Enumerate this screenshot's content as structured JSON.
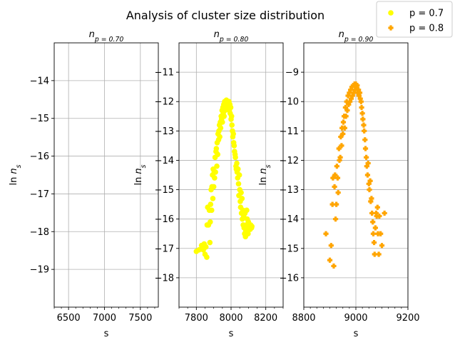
{
  "chart_data": {
    "suptitle": "Analysis of cluster size distribution",
    "legend": {
      "placement": "top-right",
      "entries": [
        {
          "label": "p = 0.7",
          "marker": "circle",
          "color": "#ffff00"
        },
        {
          "label": "p = 0.8",
          "marker": "plus",
          "color": "#ffa500"
        }
      ]
    },
    "panels": [
      {
        "type": "scatter",
        "title_base": "n",
        "title_sub": "p = 0.70",
        "xlabel": "s",
        "ylabel_base": "ln n",
        "ylabel_sub": "s",
        "xlim": [
          6300,
          7750
        ],
        "ylim": [
          -20,
          -13
        ],
        "xticks": [
          6500,
          7000,
          7500
        ],
        "xticklabels": [
          "6500",
          "7000",
          "7500"
        ],
        "yticks": [
          -19,
          -18,
          -17,
          -16,
          -15,
          -14
        ],
        "yticklabels": [
          "−19",
          "−18",
          "−17",
          "−16",
          "−15",
          "−14"
        ],
        "xminor": 100,
        "grid": true,
        "series": []
      },
      {
        "type": "scatter",
        "title_base": "n",
        "title_sub": "p = 0.80",
        "xlabel": "s",
        "ylabel_base": "ln n",
        "ylabel_sub": "s",
        "xlim": [
          7700,
          8300
        ],
        "ylim": [
          -19,
          -10
        ],
        "xticks": [
          7800,
          8000,
          8200
        ],
        "xticklabels": [
          "7800",
          "8000",
          "8200"
        ],
        "yticks": [
          -18,
          -17,
          -16,
          -15,
          -14,
          -13,
          -12,
          -11
        ],
        "yticklabels": [
          "−18",
          "−17",
          "−16",
          "−15",
          "−14",
          "−13",
          "−12",
          "−11"
        ],
        "xminor": 50,
        "grid": true,
        "series": [
          {
            "marker": "circle",
            "color": "#ffff00",
            "x": [
              7800,
              7815,
              7830,
              7840,
              7845,
              7850,
              7855,
              7860,
              7862,
              7865,
              7870,
              7875,
              7878,
              7880,
              7882,
              7885,
              7888,
              7890,
              7893,
              7895,
              7897,
              7900,
              7903,
              7905,
              7908,
              7910,
              7913,
              7915,
              7918,
              7920,
              7923,
              7925,
              7928,
              7930,
              7933,
              7935,
              7938,
              7940,
              7943,
              7945,
              7948,
              7950,
              7953,
              7955,
              7958,
              7960,
              7963,
              7965,
              7968,
              7970,
              7973,
              7975,
              7978,
              7980,
              7983,
              7985,
              7988,
              7990,
              7993,
              7995,
              7998,
              8000,
              8003,
              8005,
              8008,
              8010,
              8013,
              8015,
              8018,
              8020,
              8023,
              8025,
              8028,
              8030,
              8033,
              8035,
              8038,
              8040,
              8043,
              8045,
              8048,
              8050,
              8053,
              8055,
              8058,
              8060,
              8063,
              8065,
              8068,
              8070,
              8073,
              8075,
              8078,
              8080,
              8083,
              8085,
              8088,
              8090,
              8093,
              8095,
              8098,
              8100,
              8103,
              8105,
              8108,
              8110,
              8113,
              8115,
              8118,
              8120
            ],
            "y": [
              -17.1,
              -17.05,
              -16.9,
              -17.05,
              -16.85,
              -17.2,
              -16.95,
              -17.3,
              -16.2,
              -15.6,
              -16.2,
              -15.7,
              -16.8,
              -16.1,
              -15.5,
              -15.0,
              -15.7,
              -14.9,
              -14.5,
              -15.3,
              -14.3,
              -14.9,
              -14.4,
              -14.6,
              -13.9,
              -14.4,
              -13.7,
              -13.6,
              -14.2,
              -13.4,
              -13.8,
              -13.1,
              -13.3,
              -13.0,
              -12.8,
              -13.2,
              -12.7,
              -12.9,
              -12.5,
              -12.6,
              -12.3,
              -12.7,
              -12.2,
              -12.4,
              -12.1,
              -12.5,
              -12.0,
              -12.3,
              -12.05,
              -12.2,
              -11.95,
              -12.1,
              -12.05,
              -12.0,
              -12.2,
              -12.1,
              -12.0,
              -12.3,
              -12.1,
              -12.4,
              -12.2,
              -12.6,
              -12.5,
              -12.8,
              -13.0,
              -13.2,
              -13.1,
              -13.4,
              -13.5,
              -13.7,
              -13.8,
              -13.9,
              -14.2,
              -14.3,
              -14.1,
              -14.4,
              -14.6,
              -14.3,
              -14.8,
              -15.2,
              -14.5,
              -15.0,
              -15.4,
              -15.6,
              -15.1,
              -15.8,
              -15.3,
              -16.0,
              -15.7,
              -16.2,
              -15.9,
              -16.3,
              -16.5,
              -15.8,
              -16.6,
              -16.4,
              -16.2,
              -15.7,
              -16.0,
              -16.3,
              -16.5,
              -16.1,
              -16.3,
              -16.2,
              -16.3,
              -16.35,
              -16.2,
              -16.3,
              -16.3,
              -16.25
            ]
          }
        ]
      },
      {
        "type": "scatter",
        "title_base": "n",
        "title_sub": "p = 0.90",
        "xlabel": "s",
        "ylabel_base": "ln n",
        "ylabel_sub": "s",
        "xlim": [
          8800,
          9200
        ],
        "ylim": [
          -17,
          -8
        ],
        "xticks": [
          8800,
          9000,
          9200
        ],
        "xticklabels": [
          "8800",
          "9000",
          "9200"
        ],
        "yticks": [
          -16,
          -15,
          -14,
          -13,
          -12,
          -11,
          -10,
          -9
        ],
        "yticklabels": [
          "−16",
          "−15",
          "−14",
          "−13",
          "−12",
          "−11",
          "−10",
          "−9"
        ],
        "xminor": 25,
        "grid": true,
        "series": [
          {
            "marker": "plus",
            "color": "#ffa500",
            "x": [
              8885,
              8900,
              8905,
              8910,
              8912,
              8915,
              8918,
              8920,
              8922,
              8925,
              8927,
              8930,
              8932,
              8935,
              8937,
              8940,
              8942,
              8945,
              8947,
              8950,
              8952,
              8955,
              8957,
              8960,
              8962,
              8965,
              8967,
              8970,
              8972,
              8975,
              8977,
              8980,
              8982,
              8985,
              8987,
              8990,
              8992,
              8995,
              8997,
              9000,
              9002,
              9005,
              9007,
              9010,
              9012,
              9015,
              9017,
              9020,
              9022,
              9025,
              9027,
              9030,
              9032,
              9035,
              9037,
              9040,
              9042,
              9045,
              9047,
              9050,
              9052,
              9055,
              9057,
              9060,
              9062,
              9065,
              9067,
              9070,
              9072,
              9075,
              9078,
              9080,
              9083,
              9085,
              9088,
              9090,
              9095,
              9100,
              9110
            ],
            "y": [
              -14.5,
              -15.4,
              -14.9,
              -13.5,
              -12.6,
              -15.6,
              -12.9,
              -12.5,
              -14.0,
              -13.5,
              -12.2,
              -12.6,
              -13.1,
              -11.6,
              -12.0,
              -11.9,
              -11.2,
              -11.5,
              -10.9,
              -11.1,
              -10.7,
              -10.5,
              -10.9,
              -10.2,
              -10.5,
              -10.0,
              -10.3,
              -9.8,
              -10.1,
              -9.7,
              -10.0,
              -9.6,
              -9.9,
              -9.5,
              -9.8,
              -9.45,
              -9.7,
              -9.4,
              -9.6,
              -9.4,
              -9.5,
              -9.45,
              -9.7,
              -9.6,
              -9.8,
              -9.7,
              -9.9,
              -10.0,
              -10.2,
              -10.4,
              -10.6,
              -10.8,
              -11.0,
              -11.3,
              -11.6,
              -11.9,
              -12.2,
              -12.5,
              -12.1,
              -12.8,
              -13.0,
              -12.7,
              -13.4,
              -13.3,
              -13.8,
              -14.1,
              -14.5,
              -14.8,
              -15.2,
              -14.3,
              -13.8,
              -13.9,
              -13.6,
              -14.5,
              -15.2,
              -13.9,
              -14.5,
              -14.9,
              -13.8
            ]
          }
        ]
      }
    ]
  }
}
